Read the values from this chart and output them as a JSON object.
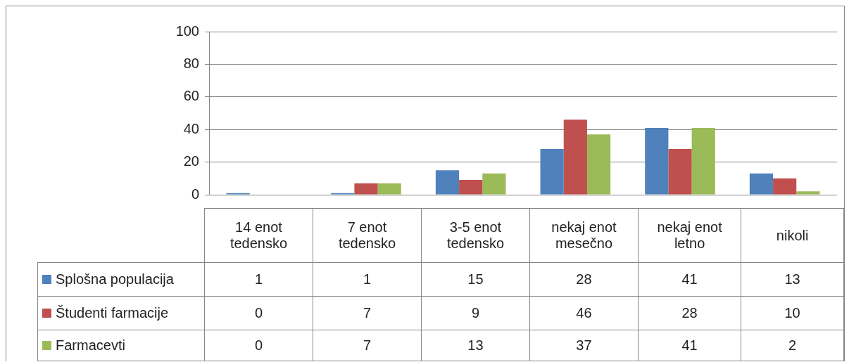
{
  "chart_data": {
    "type": "bar",
    "categories": [
      "14 enot tedensko",
      "7 enot tedensko",
      "3-5 enot tedensko",
      "nekaj enot mesečno",
      "nekaj enot letno",
      "nikoli"
    ],
    "series": [
      {
        "name": "Splošna populacija",
        "color": "#4f81bd",
        "values": [
          1,
          1,
          15,
          28,
          41,
          13
        ]
      },
      {
        "name": "Študenti farmacije",
        "color": "#c0504d",
        "values": [
          0,
          7,
          9,
          46,
          28,
          10
        ]
      },
      {
        "name": "Farmacevti",
        "color": "#9bbb59",
        "values": [
          0,
          7,
          13,
          37,
          41,
          2
        ]
      }
    ],
    "ylim": [
      0,
      100
    ],
    "yticks": [
      0,
      20,
      40,
      60,
      80,
      100
    ],
    "grid": "y",
    "legend": "bottom left",
    "data_labels": true
  }
}
